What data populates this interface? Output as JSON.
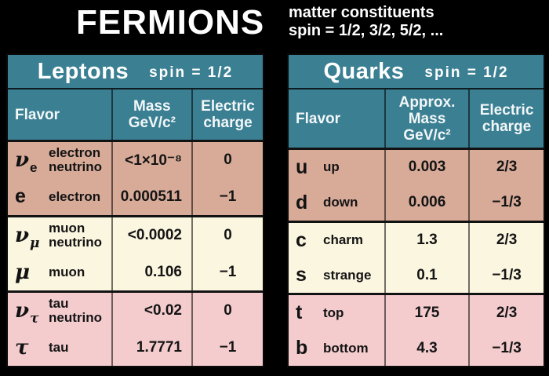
{
  "banner": {
    "title": "FERMIONS",
    "note_line1": "matter constituents",
    "note_line2": "spin = 1/2, 3/2, 5/2, ..."
  },
  "colors": {
    "header_teal": "#3B7F93",
    "generation1_tan": "#D8AB99",
    "generation2_cream": "#FBF6E0",
    "generation3_pink": "#F4CCCE",
    "background": "#000000",
    "text_dark": "#141414",
    "text_light": "#FFFFFF"
  },
  "leptons": {
    "title": "Leptons",
    "spin_label": "spin = 1/2",
    "col_flavor": "Flavor",
    "col_mass_line1": "Mass",
    "col_mass_line2": "GeV/c²",
    "col_charge_line1": "Electric",
    "col_charge_line2": "charge",
    "groups": [
      {
        "rows": [
          {
            "symbol": "ν",
            "subscript": "e",
            "name": "electron neutrino",
            "mass": "<1×10⁻⁸",
            "charge": "0"
          },
          {
            "symbol": "e",
            "subscript": "",
            "name": "electron",
            "mass": "0.000511",
            "charge": "−1"
          }
        ]
      },
      {
        "rows": [
          {
            "symbol": "ν",
            "subscript": "μ",
            "name": "muon neutrino",
            "mass": "<0.0002",
            "charge": "0"
          },
          {
            "symbol": "μ",
            "subscript": "",
            "name": "muon",
            "mass": "0.106",
            "charge": "−1"
          }
        ]
      },
      {
        "rows": [
          {
            "symbol": "ν",
            "subscript": "τ",
            "name": "tau neutrino",
            "mass": "<0.02",
            "charge": "0"
          },
          {
            "symbol": "τ",
            "subscript": "",
            "name": "tau",
            "mass": "1.7771",
            "charge": "−1"
          }
        ]
      }
    ]
  },
  "quarks": {
    "title": "Quarks",
    "spin_label": "spin = 1/2",
    "col_flavor": "Flavor",
    "col_mass_line1": "Approx.",
    "col_mass_line2": "Mass",
    "col_mass_line3": "GeV/c²",
    "col_charge_line1": "Electric",
    "col_charge_line2": "charge",
    "groups": [
      {
        "rows": [
          {
            "symbol": "u",
            "subscript": "",
            "name": "up",
            "mass": "0.003",
            "charge": "2/3"
          },
          {
            "symbol": "d",
            "subscript": "",
            "name": "down",
            "mass": "0.006",
            "charge": "−1/3"
          }
        ]
      },
      {
        "rows": [
          {
            "symbol": "c",
            "subscript": "",
            "name": "charm",
            "mass": "1.3",
            "charge": "2/3"
          },
          {
            "symbol": "s",
            "subscript": "",
            "name": "strange",
            "mass": "0.1",
            "charge": "−1/3"
          }
        ]
      },
      {
        "rows": [
          {
            "symbol": "t",
            "subscript": "",
            "name": "top",
            "mass": "175",
            "charge": "2/3"
          },
          {
            "symbol": "b",
            "subscript": "",
            "name": "bottom",
            "mass": "4.3",
            "charge": "−1/3"
          }
        ]
      }
    ]
  },
  "chart_data": {
    "type": "table",
    "title": "FERMIONS",
    "subtitle": "matter constituents spin = 1/2, 3/2, 5/2, ...",
    "tables": [
      {
        "title": "Leptons",
        "spin": "1/2",
        "columns": [
          "Flavor",
          "Mass GeV/c²",
          "Electric charge"
        ],
        "rows": [
          [
            "νe electron neutrino",
            "<1×10⁻⁸",
            "0"
          ],
          [
            "e electron",
            "0.000511",
            "−1"
          ],
          [
            "νμ muon neutrino",
            "<0.0002",
            "0"
          ],
          [
            "μ muon",
            "0.106",
            "−1"
          ],
          [
            "ντ tau neutrino",
            "<0.02",
            "0"
          ],
          [
            "τ tau",
            "1.7771",
            "−1"
          ]
        ]
      },
      {
        "title": "Quarks",
        "spin": "1/2",
        "columns": [
          "Flavor",
          "Approx. Mass GeV/c²",
          "Electric charge"
        ],
        "rows": [
          [
            "u up",
            "0.003",
            "2/3"
          ],
          [
            "d down",
            "0.006",
            "−1/3"
          ],
          [
            "c charm",
            "1.3",
            "2/3"
          ],
          [
            "s strange",
            "0.1",
            "−1/3"
          ],
          [
            "t top",
            "175",
            "2/3"
          ],
          [
            "b bottom",
            "4.3",
            "−1/3"
          ]
        ]
      }
    ]
  }
}
